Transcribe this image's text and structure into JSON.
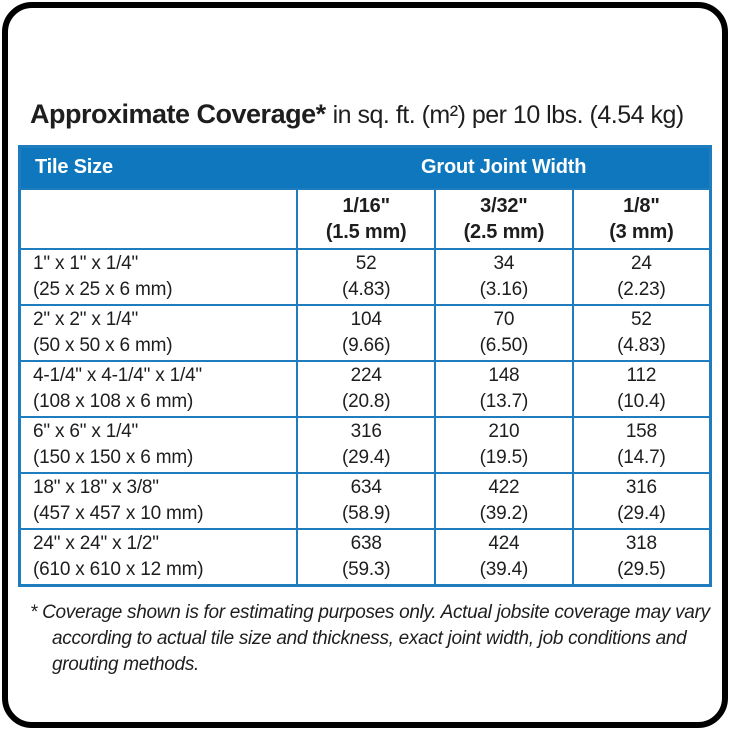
{
  "title": {
    "main": "Approximate Coverage*",
    "suffix": "in sq. ft. (m²) per 10 lbs. (4.54 kg)"
  },
  "table": {
    "header": {
      "tile_size": "Tile Size",
      "grout_joint_width": "Grout Joint Width"
    },
    "columns": [
      {
        "line1": "1/16\"",
        "line2": "(1.5 mm)"
      },
      {
        "line1": "3/32\"",
        "line2": "(2.5 mm)"
      },
      {
        "line1": "1/8\"",
        "line2": "(3 mm)"
      }
    ],
    "rows": [
      {
        "size": "1\" x 1\" x 1/4\"",
        "metric": "(25 x 25 x 6 mm)",
        "values": [
          {
            "sqft": "52",
            "m2": "(4.83)"
          },
          {
            "sqft": "34",
            "m2": "(3.16)"
          },
          {
            "sqft": "24",
            "m2": "(2.23)"
          }
        ]
      },
      {
        "size": "2\" x 2\" x 1/4\"",
        "metric": "(50 x 50 x 6 mm)",
        "values": [
          {
            "sqft": "104",
            "m2": "(9.66)"
          },
          {
            "sqft": "70",
            "m2": "(6.50)"
          },
          {
            "sqft": "52",
            "m2": "(4.83)"
          }
        ]
      },
      {
        "size": "4-1/4\" x 4-1/4\" x 1/4\"",
        "metric": "(108 x 108 x 6 mm)",
        "values": [
          {
            "sqft": "224",
            "m2": "(20.8)"
          },
          {
            "sqft": "148",
            "m2": "(13.7)"
          },
          {
            "sqft": "112",
            "m2": "(10.4)"
          }
        ]
      },
      {
        "size": "6\" x 6\" x 1/4\"",
        "metric": "(150 x 150 x 6 mm)",
        "values": [
          {
            "sqft": "316",
            "m2": "(29.4)"
          },
          {
            "sqft": "210",
            "m2": "(19.5)"
          },
          {
            "sqft": "158",
            "m2": "(14.7)"
          }
        ]
      },
      {
        "size": "18\" x 18\" x 3/8\"",
        "metric": "(457 x 457 x 10 mm)",
        "values": [
          {
            "sqft": "634",
            "m2": "(58.9)"
          },
          {
            "sqft": "422",
            "m2": "(39.2)"
          },
          {
            "sqft": "316",
            "m2": "(29.4)"
          }
        ]
      },
      {
        "size": "24\" x 24\" x 1/2\"",
        "metric": "(610 x 610 x 12 mm)",
        "values": [
          {
            "sqft": "638",
            "m2": "(59.3)"
          },
          {
            "sqft": "424",
            "m2": "(39.4)"
          },
          {
            "sqft": "318",
            "m2": "(29.5)"
          }
        ]
      }
    ]
  },
  "footnote": "* Coverage shown is for estimating purposes only. Actual jobsite coverage may vary according to actual tile size and thickness, exact joint width, job conditions and grouting methods.",
  "colors": {
    "header_blue": "#0e77bd",
    "border_blue": "#1f7cbf",
    "frame_black": "#000000"
  }
}
